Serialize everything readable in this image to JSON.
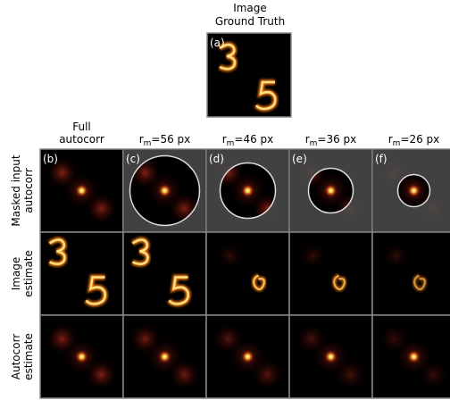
{
  "top": {
    "title": [
      "Image",
      "Ground Truth"
    ],
    "label": "(a)"
  },
  "columns": [
    {
      "lines": [
        "Full",
        "autocorr"
      ]
    },
    {
      "base": "r",
      "sub": "m",
      "rest": "=56 px"
    },
    {
      "base": "r",
      "sub": "m",
      "rest": "=46 px"
    },
    {
      "base": "r",
      "sub": "m",
      "rest": "=36 px"
    },
    {
      "base": "r",
      "sub": "m",
      "rest": "=26 px"
    }
  ],
  "panel_labels": [
    "(b)",
    "(c)",
    "(d)",
    "(e)",
    "(f)"
  ],
  "rows": [
    [
      "Masked input",
      "autocorr"
    ],
    [
      "Image",
      "estimate"
    ],
    [
      "Autocorr",
      "estimate"
    ]
  ]
}
